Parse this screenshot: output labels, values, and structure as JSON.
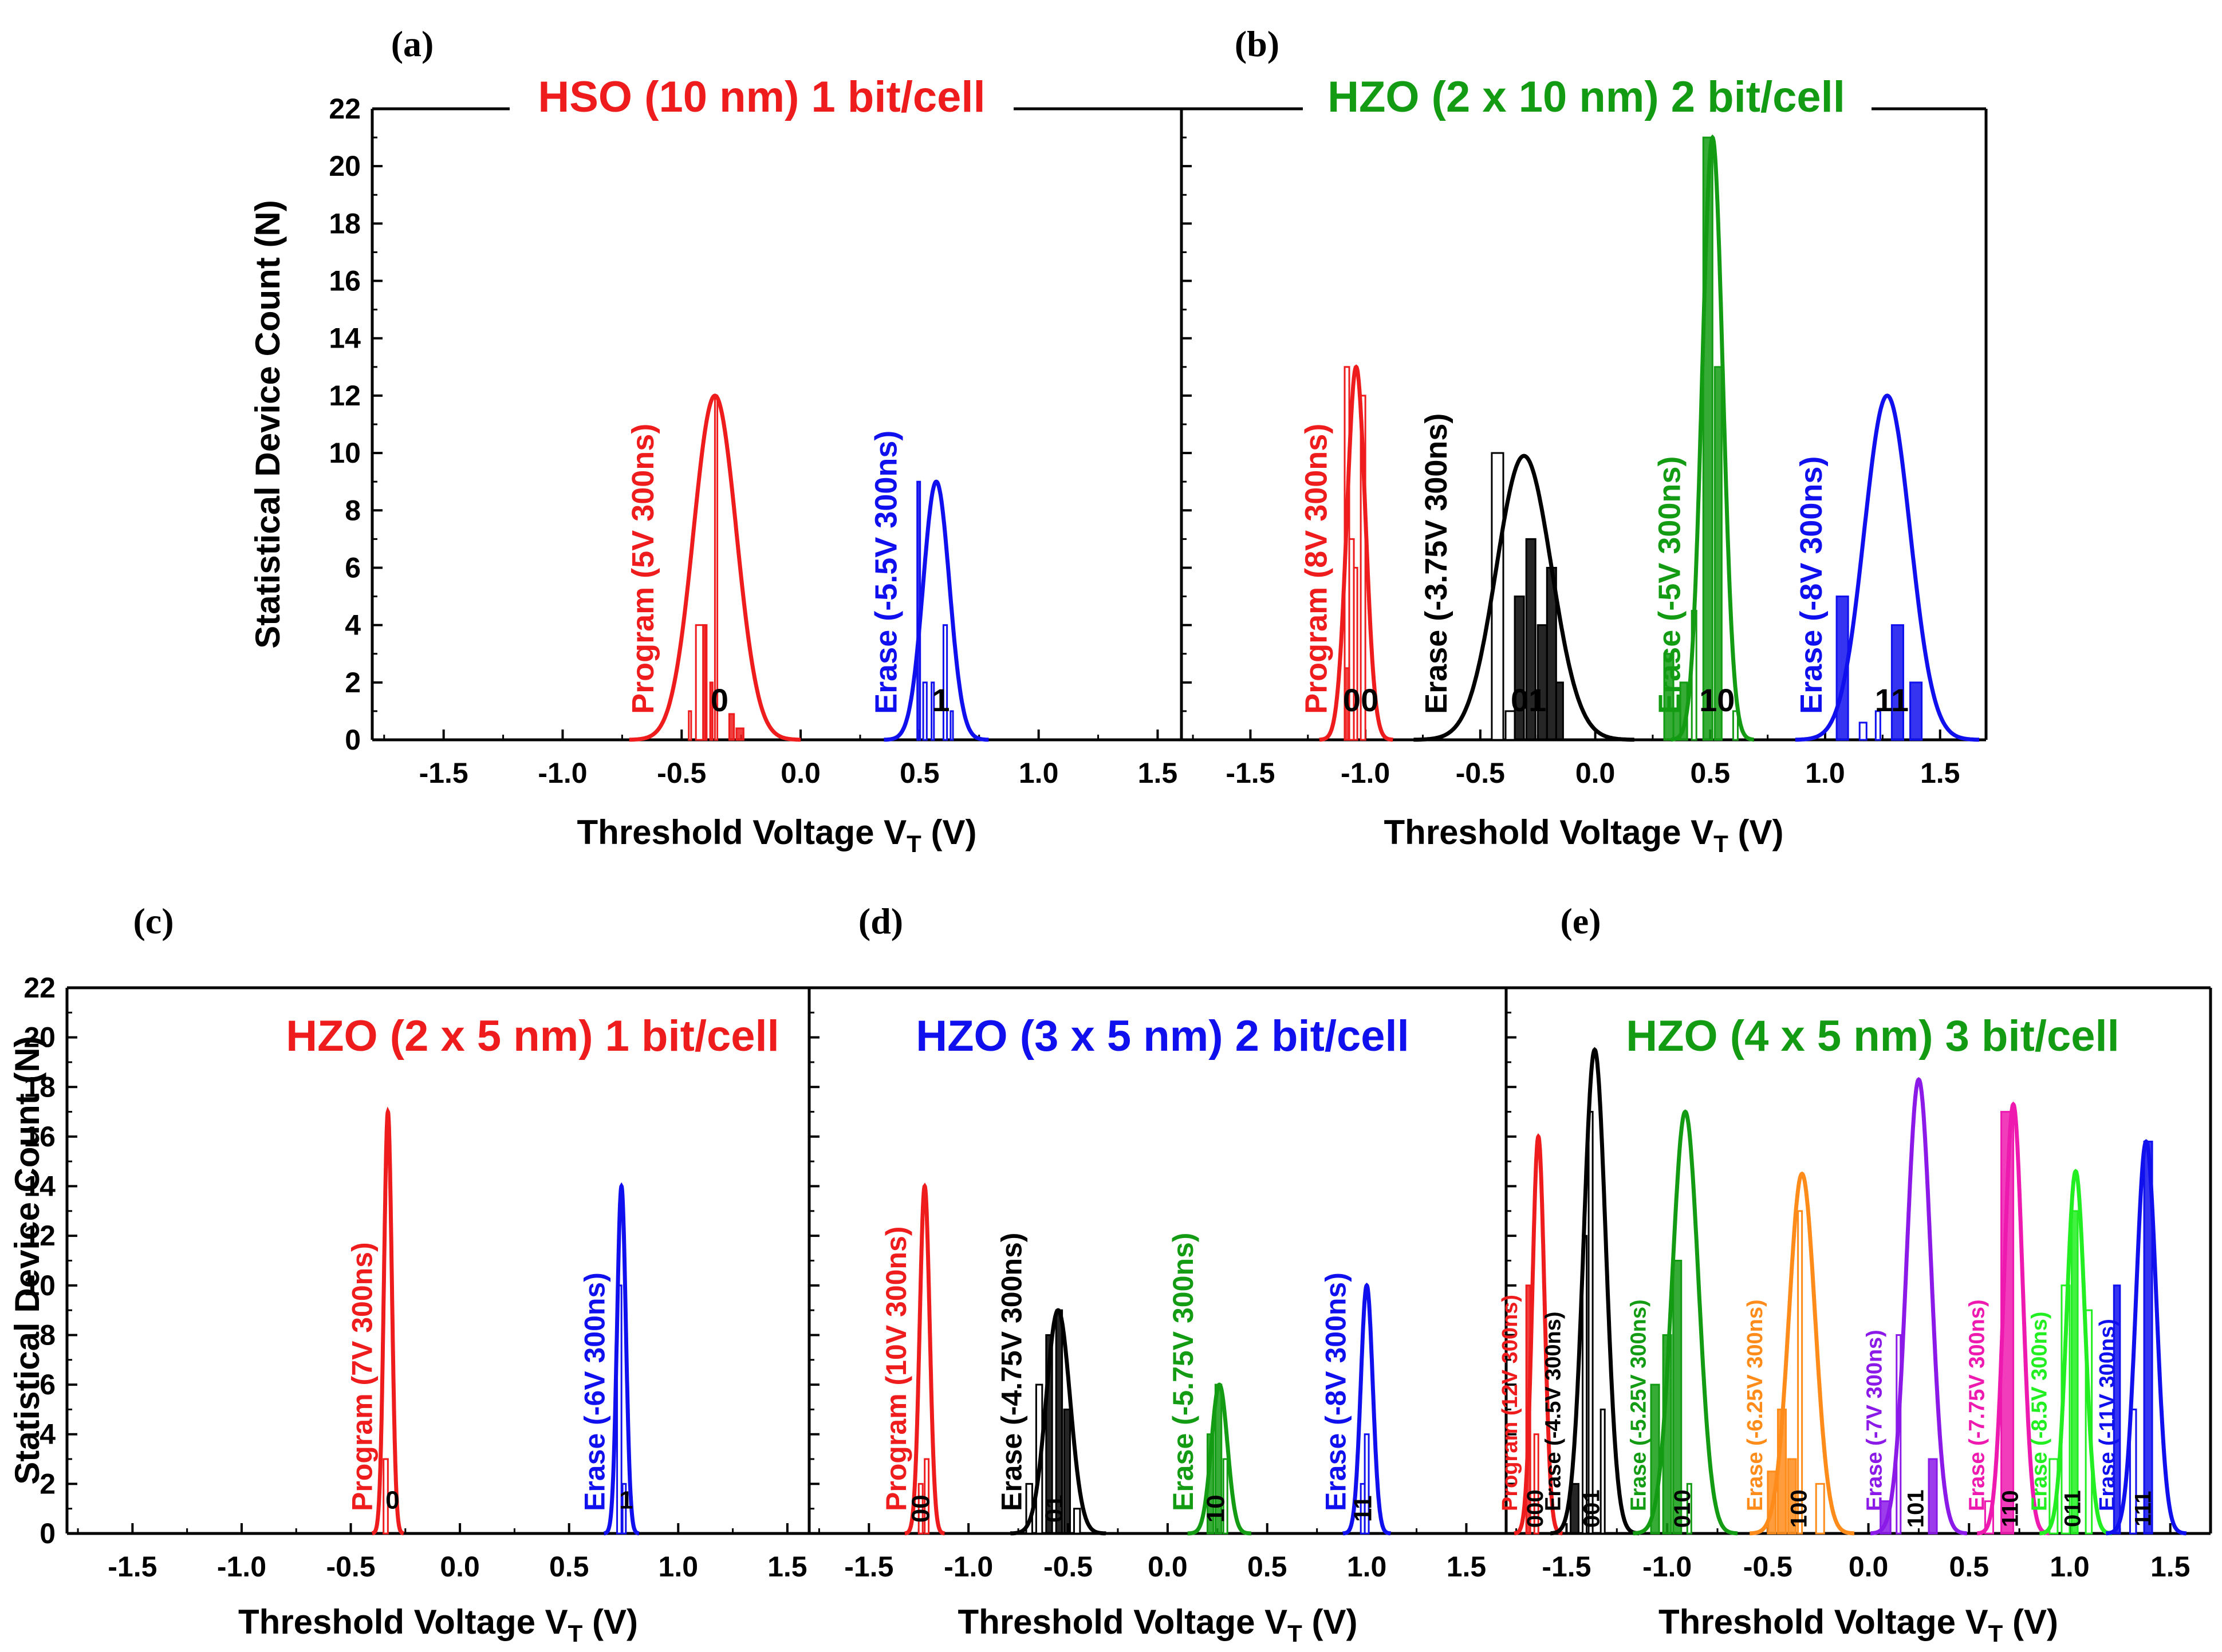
{
  "figure": {
    "y_label": "Statistical Device Count (N)",
    "x_label_main": "Threshold Voltage V",
    "x_label_sub": "T",
    "x_label_tail": " (V)"
  },
  "chart_data": [
    {
      "type": "histogram+gaussian",
      "panel": "(a)",
      "title": "HSO (10 nm) 1 bit/cell",
      "title_color": "#ee1c1c",
      "xlim": [
        -1.8,
        1.6
      ],
      "ylim": [
        0,
        22
      ],
      "xticks": [
        -1.5,
        -1.0,
        -0.5,
        0.0,
        0.5,
        1.0,
        1.5
      ],
      "yticks": [
        0,
        2,
        4,
        6,
        8,
        10,
        12,
        14,
        16,
        18,
        20,
        22
      ],
      "show_y_ticklabels": true,
      "states": [
        {
          "label": "Program (5V 300ns)",
          "state": "0",
          "color": "#ee1c1c",
          "mean": -0.36,
          "sigma": 0.09,
          "peak": 12,
          "bars": [
            {
              "x": -0.47,
              "w": 0.01,
              "h": 1,
              "f": false
            },
            {
              "x": -0.44,
              "w": 0.04,
              "h": 4,
              "f": false
            },
            {
              "x": -0.41,
              "w": 0.015,
              "h": 4,
              "f": true
            },
            {
              "x": -0.38,
              "w": 0.01,
              "h": 2,
              "f": true
            },
            {
              "x": -0.36,
              "w": 0.01,
              "h": 12,
              "f": false
            },
            {
              "x": -0.3,
              "w": 0.02,
              "h": 0.9,
              "f": true
            },
            {
              "x": -0.27,
              "w": 0.03,
              "h": 0.4,
              "f": true
            }
          ]
        },
        {
          "label": "Erase (-5.5V 300ns)",
          "state": "1",
          "color": "#1010ee",
          "mean": 0.57,
          "sigma": 0.055,
          "peak": 9,
          "bars": [
            {
              "x": 0.49,
              "w": 0.012,
              "h": 9,
              "f": true
            },
            {
              "x": 0.515,
              "w": 0.015,
              "h": 2,
              "f": false
            },
            {
              "x": 0.55,
              "w": 0.01,
              "h": 2,
              "f": false
            },
            {
              "x": 0.6,
              "w": 0.015,
              "h": 4,
              "f": false
            },
            {
              "x": 0.63,
              "w": 0.01,
              "h": 1,
              "f": false
            }
          ]
        }
      ]
    },
    {
      "type": "histogram+gaussian",
      "panel": "(b)",
      "title": "HZO (2 x 10 nm) 2 bit/cell",
      "title_color": "#139c13",
      "xlim": [
        -1.8,
        1.7
      ],
      "ylim": [
        0,
        22
      ],
      "xticks": [
        -1.5,
        -1.0,
        -0.5,
        0.0,
        0.5,
        1.0,
        1.5
      ],
      "yticks": [
        0,
        2,
        4,
        6,
        8,
        10,
        12,
        14,
        16,
        18,
        20,
        22
      ],
      "show_y_ticklabels": false,
      "states": [
        {
          "label": "Program (8V 300ns)",
          "state": "00",
          "color": "#ee1c1c",
          "mean": -1.04,
          "sigma": 0.04,
          "peak": 13,
          "bars": [
            {
              "x": -1.09,
              "w": 0.02,
              "h": 13,
              "f": false
            },
            {
              "x": -1.07,
              "w": 0.02,
              "h": 7,
              "f": false
            },
            {
              "x": -1.05,
              "w": 0.015,
              "h": 6,
              "f": false
            },
            {
              "x": -1.02,
              "w": 0.02,
              "h": 12,
              "f": false
            },
            {
              "x": -1.09,
              "w": 0.02,
              "h": 2.5,
              "f": true
            }
          ]
        },
        {
          "label": "Erase (-3.75V 300ns)",
          "state": "01",
          "color": "#000000",
          "mean": -0.31,
          "sigma": 0.12,
          "peak": 9.9,
          "bars": [
            {
              "x": -0.45,
              "w": 0.05,
              "h": 10,
              "f": false
            },
            {
              "x": -0.39,
              "w": 0.04,
              "h": 1,
              "f": false
            },
            {
              "x": -0.35,
              "w": 0.04,
              "h": 5,
              "f": true
            },
            {
              "x": -0.3,
              "w": 0.04,
              "h": 7,
              "f": true
            },
            {
              "x": -0.25,
              "w": 0.04,
              "h": 4,
              "f": true
            },
            {
              "x": -0.21,
              "w": 0.04,
              "h": 6,
              "f": true
            },
            {
              "x": -0.17,
              "w": 0.03,
              "h": 2,
              "f": true
            }
          ]
        },
        {
          "label": "Erase (-5V 300ns)",
          "state": "10",
          "color": "#139c13",
          "mean": 0.51,
          "sigma": 0.045,
          "peak": 21,
          "bars": [
            {
              "x": 0.3,
              "w": 0.04,
              "h": 3,
              "f": true
            },
            {
              "x": 0.34,
              "w": 0.03,
              "h": 1,
              "f": true
            },
            {
              "x": 0.37,
              "w": 0.03,
              "h": 2,
              "f": true
            },
            {
              "x": 0.42,
              "w": 0.02,
              "h": 4.5,
              "f": false
            },
            {
              "x": 0.47,
              "w": 0.04,
              "h": 21,
              "f": true
            },
            {
              "x": 0.52,
              "w": 0.03,
              "h": 13,
              "f": true
            },
            {
              "x": 0.6,
              "w": 0.02,
              "h": 1,
              "f": false
            }
          ]
        },
        {
          "label": "Erase (-8V 300ns)",
          "state": "11",
          "color": "#1010ee",
          "mean": 1.27,
          "sigma": 0.1,
          "peak": 12,
          "bars": [
            {
              "x": 1.05,
              "w": 0.05,
              "h": 5,
              "f": true
            },
            {
              "x": 1.15,
              "w": 0.03,
              "h": 0.6,
              "f": false
            },
            {
              "x": 1.22,
              "w": 0.02,
              "h": 1,
              "f": false
            },
            {
              "x": 1.29,
              "w": 0.05,
              "h": 4,
              "f": true
            },
            {
              "x": 1.37,
              "w": 0.05,
              "h": 2,
              "f": true
            }
          ]
        }
      ]
    },
    {
      "type": "histogram+gaussian",
      "panel": "(c)",
      "title": "HZO (2 x 5 nm) 1 bit/cell",
      "title_color": "#ee1c1c",
      "xlim": [
        -1.8,
        1.6
      ],
      "ylim": [
        0,
        22
      ],
      "xticks": [
        -1.5,
        -1.0,
        -0.5,
        0.0,
        0.5,
        1.0,
        1.5
      ],
      "yticks": [
        0,
        2,
        4,
        6,
        8,
        10,
        12,
        14,
        16,
        18,
        20,
        22
      ],
      "show_y_ticklabels": true,
      "states": [
        {
          "label": "Program (7V 300ns)",
          "state": "0",
          "color": "#ee1c1c",
          "mean": -0.33,
          "sigma": 0.018,
          "peak": 17,
          "bars": [
            {
              "x": -0.35,
              "w": 0.02,
              "h": 3,
              "f": false
            }
          ]
        },
        {
          "label": "Erase (-6V 300ns)",
          "state": "1",
          "color": "#1010ee",
          "mean": 0.74,
          "sigma": 0.02,
          "peak": 14,
          "bars": [
            {
              "x": 0.72,
              "w": 0.02,
              "h": 10,
              "f": false
            },
            {
              "x": 0.745,
              "w": 0.015,
              "h": 2,
              "f": false
            }
          ]
        }
      ]
    },
    {
      "type": "histogram+gaussian",
      "panel": "(d)",
      "title": "HZO (3 x 5 nm) 2 bit/cell",
      "title_color": "#1010ee",
      "xlim": [
        -1.8,
        1.7
      ],
      "ylim": [
        0,
        22
      ],
      "xticks": [
        -1.5,
        -1.0,
        -0.5,
        0.0,
        0.5,
        1.0,
        1.5
      ],
      "yticks": [
        0,
        2,
        4,
        6,
        8,
        10,
        12,
        14,
        16,
        18,
        20,
        22
      ],
      "show_y_ticklabels": false,
      "states": [
        {
          "label": "Program (10V 300ns)",
          "state": "00",
          "color": "#ee1c1c",
          "mean": -1.22,
          "sigma": 0.025,
          "peak": 14,
          "bars": [
            {
              "x": -1.25,
              "w": 0.02,
              "h": 2,
              "f": false
            },
            {
              "x": -1.22,
              "w": 0.02,
              "h": 3,
              "f": false
            }
          ]
        },
        {
          "label": "Erase (-4.75V 300ns)",
          "state": "01",
          "color": "#000000",
          "mean": -0.55,
          "sigma": 0.06,
          "peak": 9,
          "bars": [
            {
              "x": -0.71,
              "w": 0.03,
              "h": 2,
              "f": false
            },
            {
              "x": -0.66,
              "w": 0.03,
              "h": 6,
              "f": false
            },
            {
              "x": -0.61,
              "w": 0.03,
              "h": 8,
              "f": true
            },
            {
              "x": -0.56,
              "w": 0.03,
              "h": 9,
              "f": true
            },
            {
              "x": -0.52,
              "w": 0.03,
              "h": 5,
              "f": true
            },
            {
              "x": -0.47,
              "w": 0.03,
              "h": 1,
              "f": false
            }
          ]
        },
        {
          "label": "Erase (-5.75V 300ns)",
          "state": "10",
          "color": "#139c13",
          "mean": 0.26,
          "sigma": 0.04,
          "peak": 6,
          "bars": [
            {
              "x": 0.2,
              "w": 0.03,
              "h": 4,
              "f": true
            },
            {
              "x": 0.24,
              "w": 0.03,
              "h": 6,
              "f": true
            },
            {
              "x": 0.28,
              "w": 0.02,
              "h": 3,
              "f": false
            }
          ]
        },
        {
          "label": "Erase (-8V 300ns)",
          "state": "11",
          "color": "#1010ee",
          "mean": 1.0,
          "sigma": 0.03,
          "peak": 10,
          "bars": [
            {
              "x": 0.97,
              "w": 0.02,
              "h": 2,
              "f": false
            },
            {
              "x": 0.99,
              "w": 0.02,
              "h": 4,
              "f": false
            }
          ]
        }
      ]
    },
    {
      "type": "histogram+gaussian",
      "panel": "(e)",
      "title": "HZO (4 x 5 nm) 3 bit/cell",
      "title_color": "#139c13",
      "xlim": [
        -1.8,
        1.7
      ],
      "ylim": [
        0,
        22
      ],
      "xticks": [
        -1.5,
        -1.0,
        -0.5,
        0.0,
        0.5,
        1.0,
        1.5
      ],
      "yticks": [
        0,
        2,
        4,
        6,
        8,
        10,
        12,
        14,
        16,
        18,
        20,
        22
      ],
      "show_y_ticklabels": false,
      "states": [
        {
          "label": "Program (12V 300ns)",
          "state": "000",
          "color": "#ee1c1c",
          "mean": -1.64,
          "sigma": 0.03,
          "peak": 16,
          "bars": [
            {
              "x": -1.7,
              "w": 0.02,
              "h": 10,
              "f": true
            },
            {
              "x": -1.66,
              "w": 0.02,
              "h": 4,
              "f": false
            }
          ]
        },
        {
          "label": "Erase (-4.5V 300ns)",
          "state": "001",
          "color": "#000000",
          "mean": -1.36,
          "sigma": 0.055,
          "peak": 19.5,
          "bars": [
            {
              "x": -1.48,
              "w": 0.04,
              "h": 2,
              "f": true
            },
            {
              "x": -1.42,
              "w": 0.02,
              "h": 12,
              "f": false
            },
            {
              "x": -1.39,
              "w": 0.02,
              "h": 17,
              "f": false
            },
            {
              "x": -1.33,
              "w": 0.02,
              "h": 5,
              "f": false
            }
          ]
        },
        {
          "label": "Erase (-5.25V 300ns)",
          "state": "010",
          "color": "#139c13",
          "mean": -0.91,
          "sigma": 0.065,
          "peak": 17,
          "bars": [
            {
              "x": -1.08,
              "w": 0.04,
              "h": 6,
              "f": true
            },
            {
              "x": -1.02,
              "w": 0.04,
              "h": 8,
              "f": true
            },
            {
              "x": -0.97,
              "w": 0.04,
              "h": 11,
              "f": true
            },
            {
              "x": -0.9,
              "w": 0.02,
              "h": 2,
              "f": false
            }
          ]
        },
        {
          "label": "Erase (-6.25V 300ns)",
          "state": "100",
          "color": "#ff8c1a",
          "mean": -0.33,
          "sigma": 0.065,
          "peak": 14.5,
          "bars": [
            {
              "x": -0.5,
              "w": 0.04,
              "h": 2.5,
              "f": true
            },
            {
              "x": -0.45,
              "w": 0.04,
              "h": 5,
              "f": true
            },
            {
              "x": -0.4,
              "w": 0.04,
              "h": 3,
              "f": true
            },
            {
              "x": -0.35,
              "w": 0.02,
              "h": 13,
              "f": false
            },
            {
              "x": -0.26,
              "w": 0.04,
              "h": 2,
              "f": false
            }
          ]
        },
        {
          "label": "Erase (-7V 300ns)",
          "state": "101",
          "color": "#8b1ae8",
          "mean": 0.25,
          "sigma": 0.06,
          "peak": 18.3,
          "bars": [
            {
              "x": 0.06,
              "w": 0.05,
              "h": 1.3,
              "f": true
            },
            {
              "x": 0.14,
              "w": 0.02,
              "h": 8,
              "f": false
            },
            {
              "x": 0.3,
              "w": 0.04,
              "h": 3,
              "f": true
            }
          ]
        },
        {
          "label": "Erase (-7.75V 300ns)",
          "state": "110",
          "color": "#ee1ab0",
          "mean": 0.72,
          "sigma": 0.045,
          "peak": 17.3,
          "bars": [
            {
              "x": 0.58,
              "w": 0.04,
              "h": 1.3,
              "f": false
            },
            {
              "x": 0.66,
              "w": 0.06,
              "h": 17,
              "f": true
            }
          ]
        },
        {
          "label": "Erase (-8.5V 300ns)",
          "state": "011",
          "color": "#22ee22",
          "mean": 1.03,
          "sigma": 0.045,
          "peak": 14.6,
          "bars": [
            {
              "x": 0.9,
              "w": 0.04,
              "h": 3,
              "f": false
            },
            {
              "x": 0.96,
              "w": 0.04,
              "h": 10,
              "f": false
            },
            {
              "x": 1.01,
              "w": 0.03,
              "h": 13,
              "f": true
            },
            {
              "x": 1.08,
              "w": 0.03,
              "h": 9,
              "f": false
            }
          ]
        },
        {
          "label": "Erase (-11V 300ns)",
          "state": "111",
          "color": "#1010ee",
          "mean": 1.38,
          "sigma": 0.05,
          "peak": 15.8,
          "bars": [
            {
              "x": 1.22,
              "w": 0.03,
              "h": 10,
              "f": true
            },
            {
              "x": 1.3,
              "w": 0.03,
              "h": 5,
              "f": false
            },
            {
              "x": 1.37,
              "w": 0.04,
              "h": 15.8,
              "f": true
            }
          ]
        }
      ]
    }
  ]
}
